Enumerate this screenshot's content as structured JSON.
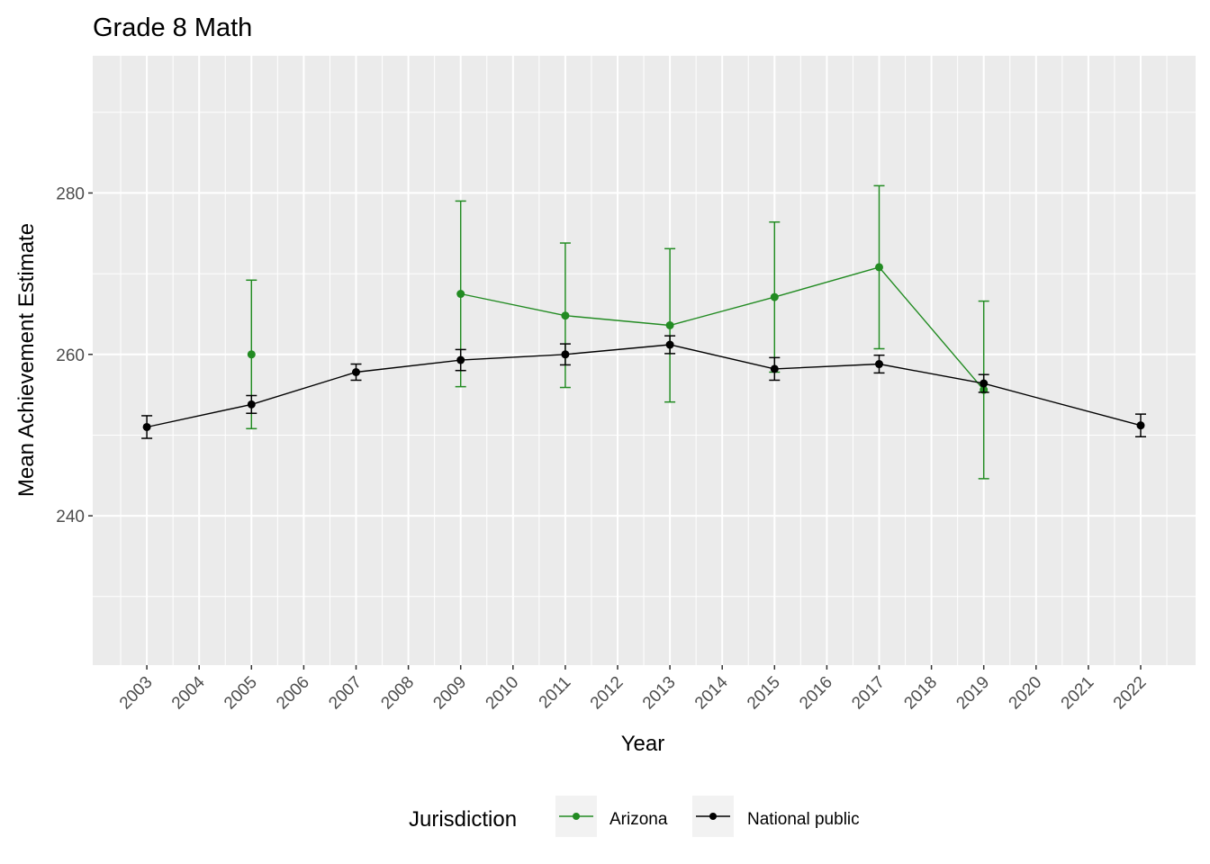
{
  "chart_data": {
    "type": "line",
    "title": "Grade 8 Math",
    "xlabel": "Year",
    "ylabel": "Mean Achievement Estimate",
    "x": [
      "2003",
      "2004",
      "2005",
      "2006",
      "2007",
      "2008",
      "2009",
      "2010",
      "2011",
      "2012",
      "2013",
      "2014",
      "2015",
      "2016",
      "2017",
      "2018",
      "2019",
      "2020",
      "2021",
      "2022"
    ],
    "ylim": [
      221.5,
      297.0
    ],
    "yticks": [
      240,
      260,
      280
    ],
    "grid": true,
    "legend": {
      "title": "Jurisdiction",
      "position": "bottom"
    },
    "series": [
      {
        "name": "Arizona",
        "color": "#228B22",
        "connect_from": "2009",
        "points": [
          {
            "x": "2005",
            "y": 260.0,
            "lo": 250.8,
            "hi": 269.2
          },
          {
            "x": "2009",
            "y": 267.5,
            "lo": 256.0,
            "hi": 279.0
          },
          {
            "x": "2011",
            "y": 264.8,
            "lo": 255.9,
            "hi": 273.8
          },
          {
            "x": "2013",
            "y": 263.6,
            "lo": 254.1,
            "hi": 273.1
          },
          {
            "x": "2015",
            "y": 267.1,
            "lo": 257.8,
            "hi": 276.4
          },
          {
            "x": "2017",
            "y": 270.8,
            "lo": 260.7,
            "hi": 280.9
          },
          {
            "x": "2019",
            "y": 255.6,
            "lo": 244.6,
            "hi": 266.6
          }
        ]
      },
      {
        "name": "National public",
        "color": "#000000",
        "connect_from": "2003",
        "points": [
          {
            "x": "2003",
            "y": 251.0,
            "lo": 249.6,
            "hi": 252.4
          },
          {
            "x": "2005",
            "y": 253.8,
            "lo": 252.7,
            "hi": 254.9
          },
          {
            "x": "2007",
            "y": 257.8,
            "lo": 256.8,
            "hi": 258.8
          },
          {
            "x": "2009",
            "y": 259.3,
            "lo": 258.0,
            "hi": 260.6
          },
          {
            "x": "2011",
            "y": 260.0,
            "lo": 258.7,
            "hi": 261.3
          },
          {
            "x": "2013",
            "y": 261.2,
            "lo": 260.1,
            "hi": 262.3
          },
          {
            "x": "2015",
            "y": 258.2,
            "lo": 256.8,
            "hi": 259.6
          },
          {
            "x": "2017",
            "y": 258.8,
            "lo": 257.7,
            "hi": 259.9
          },
          {
            "x": "2019",
            "y": 256.4,
            "lo": 255.3,
            "hi": 257.5
          },
          {
            "x": "2022",
            "y": 251.2,
            "lo": 249.8,
            "hi": 252.6
          }
        ]
      }
    ]
  }
}
